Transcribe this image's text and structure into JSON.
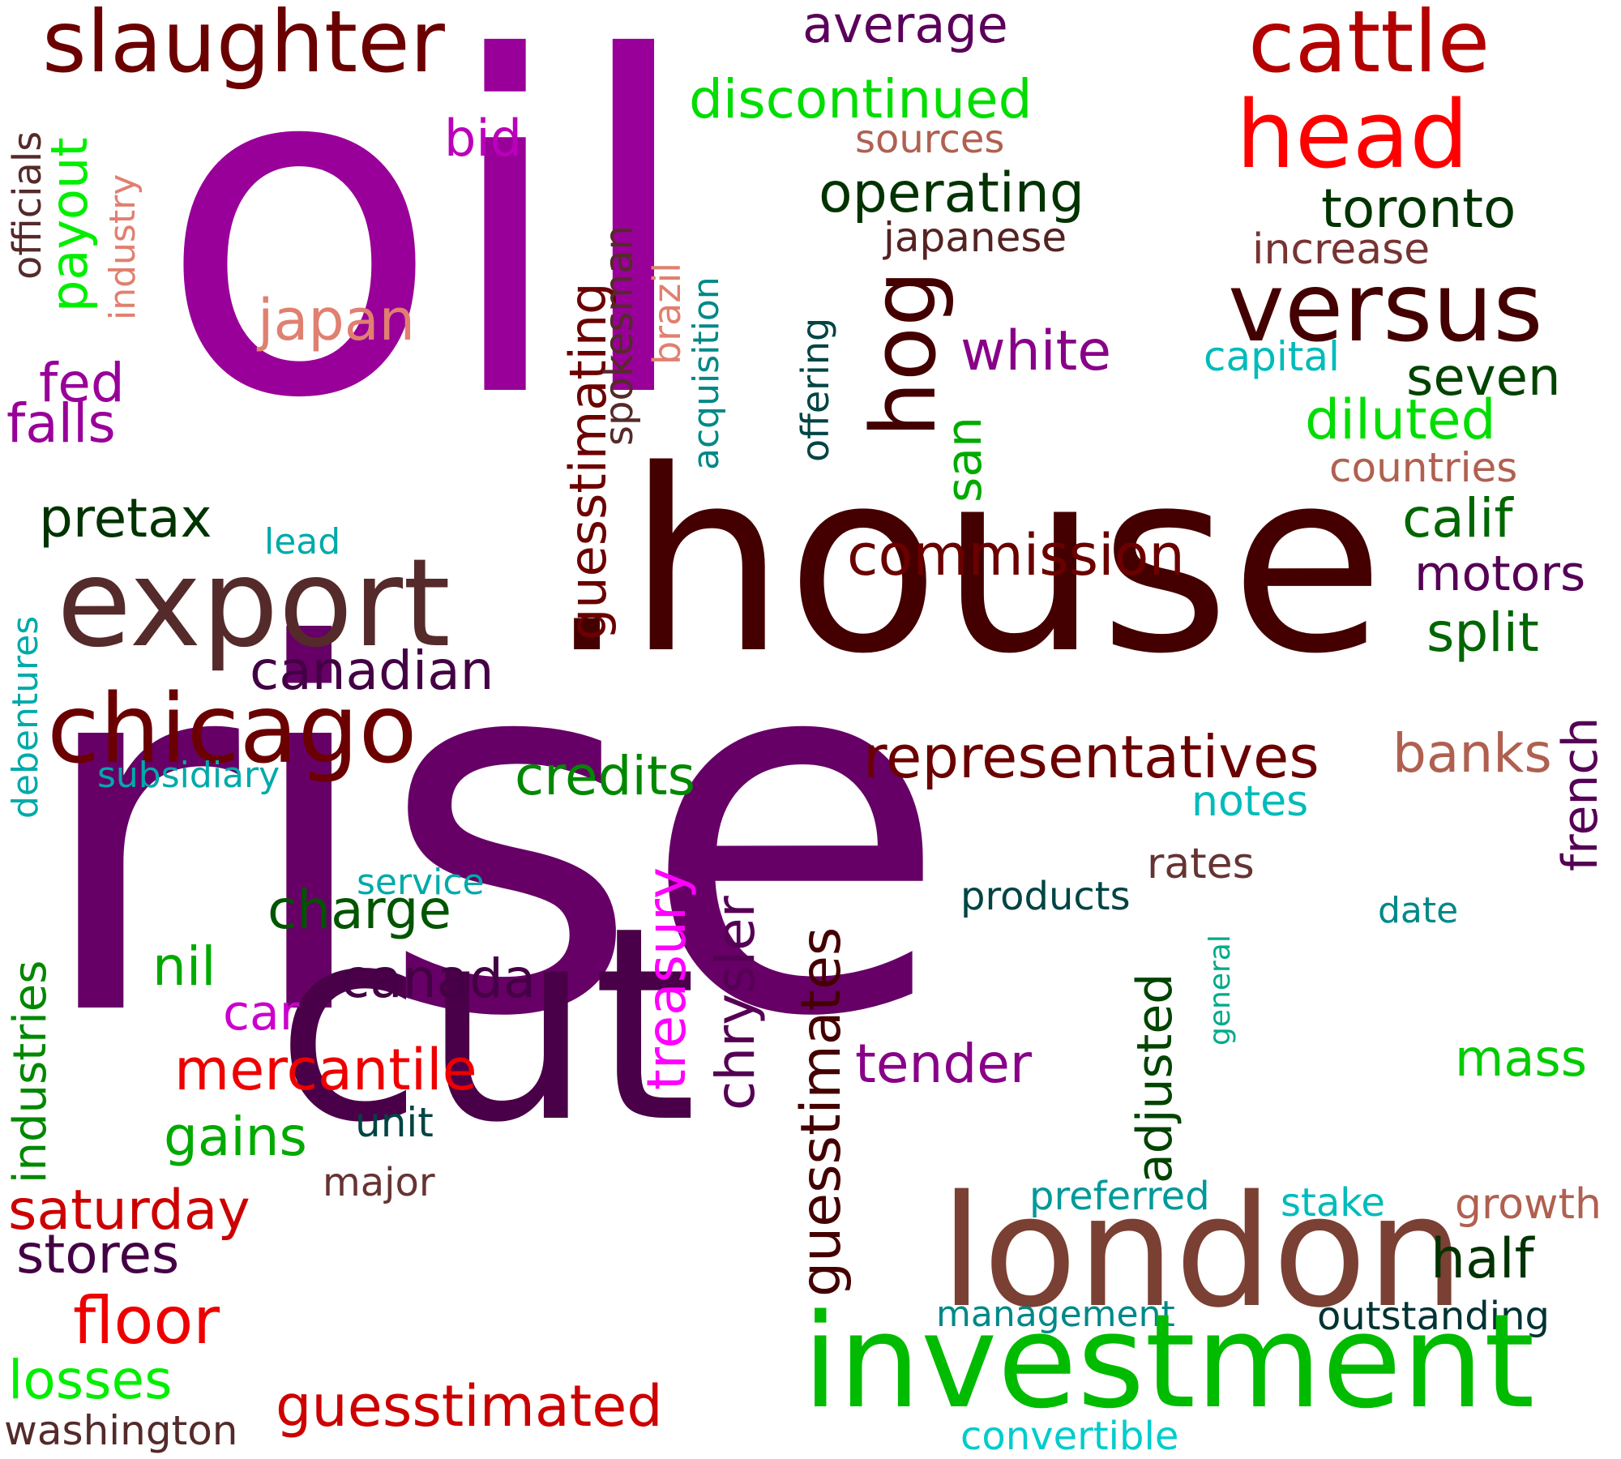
{
  "words": [
    {
      "text": "oil",
      "color": "#990099",
      "vertical": false
    },
    {
      "text": ".house",
      "color": "#440000",
      "vertical": false
    },
    {
      "text": "rise",
      "color": "#660066",
      "vertical": false
    },
    {
      "text": "cut",
      "color": "#4a0048",
      "vertical": false
    },
    {
      "text": "slaughter",
      "color": "#6b0000",
      "vertical": false
    },
    {
      "text": "average",
      "color": "#5a005a",
      "vertical": false
    },
    {
      "text": "cattle",
      "color": "#b30000",
      "vertical": false
    },
    {
      "text": "head",
      "color": "#ff0000",
      "vertical": false
    },
    {
      "text": "discontinued",
      "color": "#00dd00",
      "vertical": false
    },
    {
      "text": "sources",
      "color": "#b06050",
      "vertical": false
    },
    {
      "text": "bid",
      "color": "#bb00bb",
      "vertical": false
    },
    {
      "text": "operating",
      "color": "#003300",
      "vertical": false
    },
    {
      "text": "toronto",
      "color": "#003300",
      "vertical": false
    },
    {
      "text": "japanese",
      "color": "#552222",
      "vertical": false
    },
    {
      "text": "increase",
      "color": "#773333",
      "vertical": false
    },
    {
      "text": "versus",
      "color": "#440000",
      "vertical": false
    },
    {
      "text": "japan",
      "color": "#e08070",
      "vertical": false
    },
    {
      "text": "white",
      "color": "#880088",
      "vertical": false
    },
    {
      "text": "capital",
      "color": "#00bbbb",
      "vertical": false
    },
    {
      "text": "seven",
      "color": "#004400",
      "vertical": false
    },
    {
      "text": "fed",
      "color": "#990099",
      "vertical": false
    },
    {
      "text": "falls",
      "color": "#990099",
      "vertical": false
    },
    {
      "text": "diluted",
      "color": "#00dd00",
      "vertical": false
    },
    {
      "text": "countries",
      "color": "#b06050",
      "vertical": false
    },
    {
      "text": "pretax",
      "color": "#003300",
      "vertical": false
    },
    {
      "text": "lead",
      "color": "#00aaaa",
      "vertical": false
    },
    {
      "text": "calif",
      "color": "#006600",
      "vertical": false
    },
    {
      "text": "commission",
      "color": "#6b0000",
      "vertical": false
    },
    {
      "text": "export",
      "color": "#552a2a",
      "vertical": false
    },
    {
      "text": "motors",
      "color": "#550055",
      "vertical": false
    },
    {
      "text": "split",
      "color": "#006600",
      "vertical": false
    },
    {
      "text": "canadian",
      "color": "#440044",
      "vertical": false
    },
    {
      "text": "chicago",
      "color": "#6b0000",
      "vertical": false
    },
    {
      "text": "representatives",
      "color": "#6b0000",
      "vertical": false
    },
    {
      "text": "banks",
      "color": "#b06050",
      "vertical": false
    },
    {
      "text": "subsidiary",
      "color": "#00aaaa",
      "vertical": false
    },
    {
      "text": "credits",
      "color": "#008800",
      "vertical": false
    },
    {
      "text": "notes",
      "color": "#00bbbb",
      "vertical": false
    },
    {
      "text": "rates",
      "color": "#663333",
      "vertical": false
    },
    {
      "text": "service",
      "color": "#00aaaa",
      "vertical": false
    },
    {
      "text": "products",
      "color": "#004444",
      "vertical": false
    },
    {
      "text": "date",
      "color": "#008888",
      "vertical": false
    },
    {
      "text": "charge",
      "color": "#005500",
      "vertical": false
    },
    {
      "text": "nil",
      "color": "#00aa00",
      "vertical": false
    },
    {
      "text": "canada",
      "color": "#440044",
      "vertical": false
    },
    {
      "text": "car",
      "color": "#cc00cc",
      "vertical": false
    },
    {
      "text": "mercantile",
      "color": "#ee0000",
      "vertical": false
    },
    {
      "text": "tender",
      "color": "#880088",
      "vertical": false
    },
    {
      "text": "mass",
      "color": "#00cc00",
      "vertical": false
    },
    {
      "text": "gains",
      "color": "#00aa00",
      "vertical": false
    },
    {
      "text": "unit",
      "color": "#004444",
      "vertical": false
    },
    {
      "text": "major",
      "color": "#663333",
      "vertical": false
    },
    {
      "text": "preferred",
      "color": "#009999",
      "vertical": false
    },
    {
      "text": "stake",
      "color": "#00bbbb",
      "vertical": false
    },
    {
      "text": "growth",
      "color": "#b06050",
      "vertical": false
    },
    {
      "text": "saturday",
      "color": "#cc0000",
      "vertical": false
    },
    {
      "text": "london",
      "color": "#7a4033",
      "vertical": false
    },
    {
      "text": "half",
      "color": "#003300",
      "vertical": false
    },
    {
      "text": "stores",
      "color": "#440044",
      "vertical": false
    },
    {
      "text": "management",
      "color": "#008888",
      "vertical": false
    },
    {
      "text": "outstanding",
      "color": "#003333",
      "vertical": false
    },
    {
      "text": "floor",
      "color": "#ee0000",
      "vertical": false
    },
    {
      "text": "investment",
      "color": "#00bb00",
      "vertical": false
    },
    {
      "text": "losses",
      "color": "#00ee00",
      "vertical": false
    },
    {
      "text": "guesstimated",
      "color": "#cc0000",
      "vertical": false
    },
    {
      "text": "washington",
      "color": "#552a2a",
      "vertical": false
    },
    {
      "text": "convertible",
      "color": "#00cccc",
      "vertical": false
    },
    {
      "text": "officials",
      "color": "#552a2a",
      "vertical": true
    },
    {
      "text": "payout",
      "color": "#00ee00",
      "vertical": true
    },
    {
      "text": "industry",
      "color": "#e08070",
      "vertical": true
    },
    {
      "text": "guesstimating",
      "color": "#6b0000",
      "vertical": true
    },
    {
      "text": "spokesman",
      "color": "#552a2a",
      "vertical": true
    },
    {
      "text": "brazil",
      "color": "#e08070",
      "vertical": true
    },
    {
      "text": "acquisition",
      "color": "#008888",
      "vertical": true
    },
    {
      "text": "offering",
      "color": "#004444",
      "vertical": true
    },
    {
      "text": "hog",
      "color": "#440000",
      "vertical": true
    },
    {
      "text": "san",
      "color": "#00aa00",
      "vertical": true
    },
    {
      "text": "debentures",
      "color": "#00aaaa",
      "vertical": true
    },
    {
      "text": "industries",
      "color": "#008800",
      "vertical": true
    },
    {
      "text": "french",
      "color": "#550055",
      "vertical": true
    },
    {
      "text": "treasury",
      "color": "#ff00ff",
      "vertical": true
    },
    {
      "text": "chrysler",
      "color": "#550055",
      "vertical": true
    },
    {
      "text": "guesstimates",
      "color": "#440000",
      "vertical": true
    },
    {
      "text": "adjusted",
      "color": "#004400",
      "vertical": true
    },
    {
      "text": "general",
      "color": "#00aa88",
      "vertical": true
    }
  ]
}
